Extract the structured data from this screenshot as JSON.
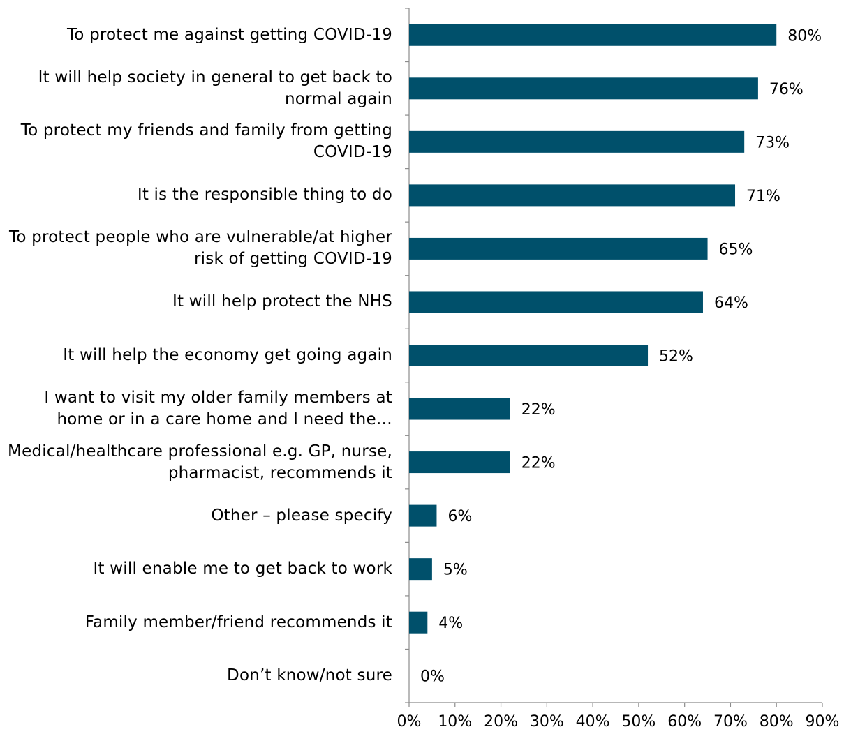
{
  "chart_data": {
    "type": "bar",
    "orientation": "horizontal",
    "categories": [
      "To protect me against getting COVID-19",
      "It will help society in general to get back to normal again",
      "To protect my friends and family from getting COVID-19",
      "It is the responsible thing to do",
      "To protect people who are vulnerable/at higher risk of getting COVID-19",
      "It will help protect the NHS",
      "It will help the economy get going again",
      "I want to visit my older family members at home or in a care home and I need the…",
      "Medical/healthcare professional e.g. GP, nurse, pharmacist, recommends it",
      "Other – please specify",
      "It will enable me to get back to work",
      "Family member/friend recommends it",
      "Don’t know/not sure"
    ],
    "values": [
      80,
      76,
      73,
      71,
      65,
      64,
      52,
      22,
      22,
      6,
      5,
      4,
      0
    ],
    "data_labels": [
      "80%",
      "76%",
      "73%",
      "71%",
      "65%",
      "64%",
      "52%",
      "22%",
      "22%",
      "6%",
      "5%",
      "4%",
      "0%"
    ],
    "xlim": [
      0,
      90
    ],
    "x_ticks": [
      0,
      10,
      20,
      30,
      40,
      50,
      60,
      70,
      80,
      90
    ],
    "x_tick_labels": [
      "0%",
      "10%",
      "20%",
      "30%",
      "40%",
      "50%",
      "60%",
      "70%",
      "80%",
      "90%"
    ],
    "bar_color": "#00506B",
    "grid": false
  }
}
